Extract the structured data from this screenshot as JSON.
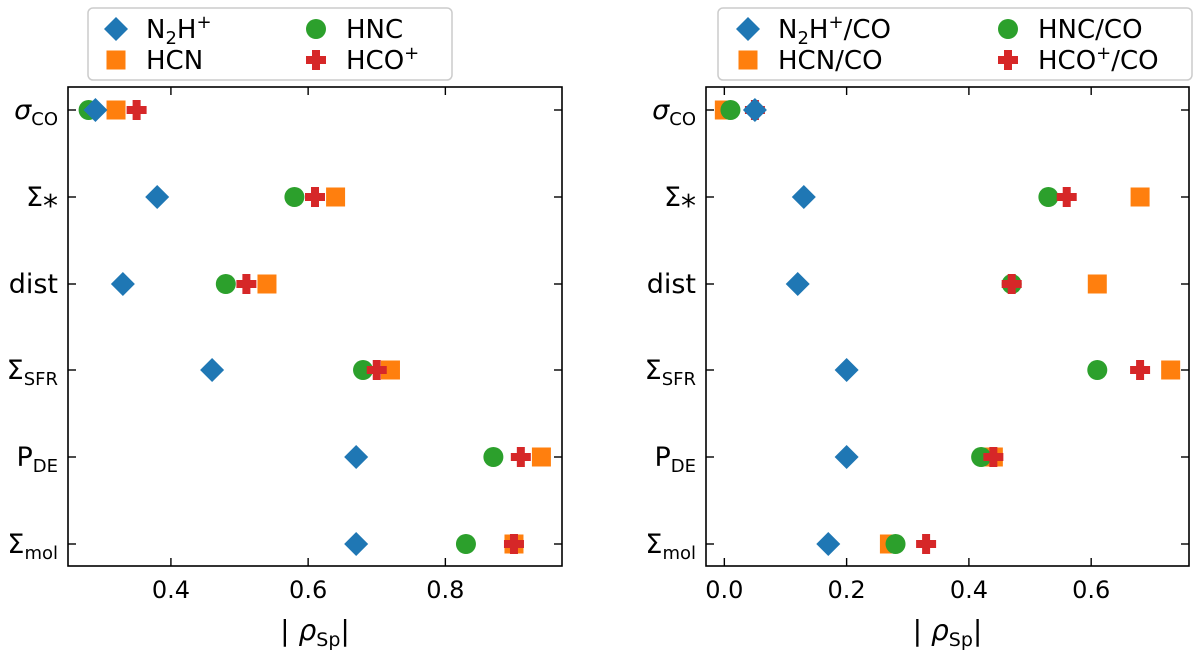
{
  "chart_data": [
    {
      "type": "scatter",
      "xlabel": "| ρ_Sp|",
      "xlim": [
        0.25,
        0.97
      ],
      "xticks": [
        "0.4",
        "0.6",
        "0.8"
      ],
      "xtick_values": [
        0.4,
        0.6,
        0.8
      ],
      "categories": [
        "σ_CO",
        "Σ_*",
        "dist",
        "Σ_SFR",
        "P_DE",
        "Σ_mol"
      ],
      "series": [
        {
          "name": "N2H+",
          "label_main": "N",
          "label_sub": "2",
          "label_rest": "H",
          "label_sup": "+",
          "marker": "diamond",
          "color": "#1f77b4",
          "values": [
            0.29,
            0.38,
            0.33,
            0.46,
            0.67,
            0.67
          ]
        },
        {
          "name": "HCN",
          "label_main": "HCN",
          "marker": "square",
          "color": "#ff7f0e",
          "values": [
            0.32,
            0.64,
            0.54,
            0.72,
            0.94,
            0.9
          ]
        },
        {
          "name": "HNC",
          "label_main": "HNC",
          "marker": "circle",
          "color": "#2ca02c",
          "values": [
            0.28,
            0.58,
            0.48,
            0.68,
            0.87,
            0.83
          ]
        },
        {
          "name": "HCO+",
          "label_main": "HCO",
          "label_sup": "+",
          "marker": "plus",
          "color": "#d62728",
          "values": [
            0.35,
            0.61,
            0.51,
            0.7,
            0.91,
            0.9
          ]
        }
      ]
    },
    {
      "type": "scatter",
      "xlabel": "| ρ_Sp|",
      "xlim": [
        -0.03,
        0.76
      ],
      "xticks": [
        "0.0",
        "0.2",
        "0.4",
        "0.6"
      ],
      "xtick_values": [
        0.0,
        0.2,
        0.4,
        0.6
      ],
      "categories": [
        "σ_CO",
        "Σ_*",
        "dist",
        "Σ_SFR",
        "P_DE",
        "Σ_mol"
      ],
      "series": [
        {
          "name": "N2H+/CO",
          "label_main": "N",
          "label_sub": "2",
          "label_rest": "H",
          "label_sup": "+",
          "label_tail": "/CO",
          "marker": "diamond",
          "color": "#1f77b4",
          "values": [
            0.05,
            0.13,
            0.12,
            0.2,
            0.2,
            0.17
          ]
        },
        {
          "name": "HCN/CO",
          "label_main": "HCN/CO",
          "marker": "square",
          "color": "#ff7f0e",
          "values": [
            0.0,
            0.68,
            0.61,
            0.73,
            0.44,
            0.27
          ]
        },
        {
          "name": "HNC/CO",
          "label_main": "HNC/CO",
          "marker": "circle",
          "color": "#2ca02c",
          "values": [
            0.01,
            0.53,
            0.47,
            0.61,
            0.42,
            0.28
          ]
        },
        {
          "name": "HCO+/CO",
          "label_main": "HCO",
          "label_sup": "+",
          "label_tail": "/CO",
          "marker": "plus",
          "color": "#d62728",
          "values": [
            0.05,
            0.56,
            0.47,
            0.68,
            0.44,
            0.33
          ]
        }
      ]
    }
  ],
  "ylabels": [
    {
      "main": "σ",
      "sub": "CO",
      "italic": true
    },
    {
      "main": "Σ",
      "sub": "*",
      "italic": false,
      "star": true
    },
    {
      "main": "dist",
      "sub": "",
      "italic": false
    },
    {
      "main": "Σ",
      "sub": "SFR",
      "italic": false
    },
    {
      "main": "P",
      "sub": "DE",
      "italic": false
    },
    {
      "main": "Σ",
      "sub": "mol",
      "italic": false
    }
  ],
  "xlabel_parts": {
    "bar": "|",
    "rho": "ρ",
    "sub": "Sp"
  }
}
